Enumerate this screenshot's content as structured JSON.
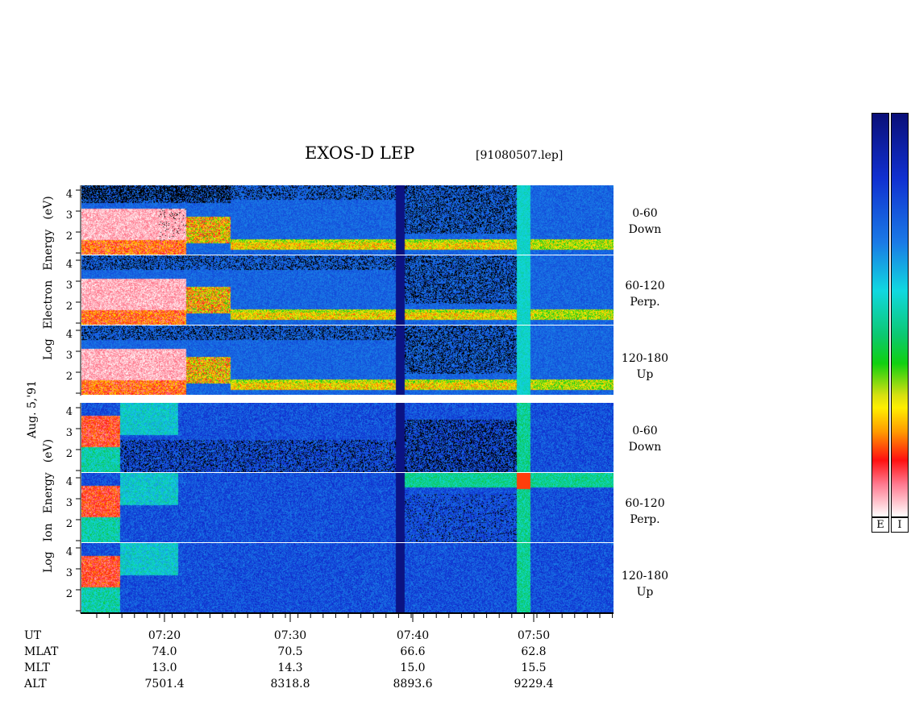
{
  "title": "EXOS-D LEP",
  "filename": "[91080507.lep]",
  "date_label": "Aug. 5,'91",
  "electron_ylabel": [
    "Log",
    "Electron",
    "Energy",
    "(eV)"
  ],
  "ion_ylabel": [
    "Log",
    "Ion",
    "Energy",
    "(eV)"
  ],
  "yticks": [
    "4",
    "3",
    "2"
  ],
  "pitch_angles": [
    {
      "range": "0-60",
      "dir": "Down"
    },
    {
      "range": "60-120",
      "dir": "Perp."
    },
    {
      "range": "120-180",
      "dir": "Up"
    },
    {
      "range": "0-60",
      "dir": "Down"
    },
    {
      "range": "60-120",
      "dir": "Perp."
    },
    {
      "range": "120-180",
      "dir": "Up"
    }
  ],
  "colorbar_labels": [
    "E",
    "I"
  ],
  "chart_data": {
    "type": "heatmap",
    "title": "EXOS-D LEP",
    "subtitle": "[91080507.lep]",
    "ylabel_electron": "Log Electron Energy (eV)",
    "ylabel_ion": "Log Ion Energy (eV)",
    "ylim": [
      1,
      4
    ],
    "x_ticks": [
      "07:20",
      "07:30",
      "07:40",
      "07:50"
    ],
    "orbit_rows": [
      {
        "name": "UT",
        "values": [
          "07:20",
          "07:30",
          "07:40",
          "07:50"
        ]
      },
      {
        "name": "MLAT",
        "values": [
          "74.0",
          "70.5",
          "66.6",
          "62.8"
        ]
      },
      {
        "name": "MLT",
        "values": [
          "13.0",
          "14.3",
          "15.0",
          "15.5"
        ]
      },
      {
        "name": "ALT",
        "values": [
          "7501.4",
          "8318.8",
          "8893.6",
          "9229.4"
        ]
      }
    ]
  }
}
